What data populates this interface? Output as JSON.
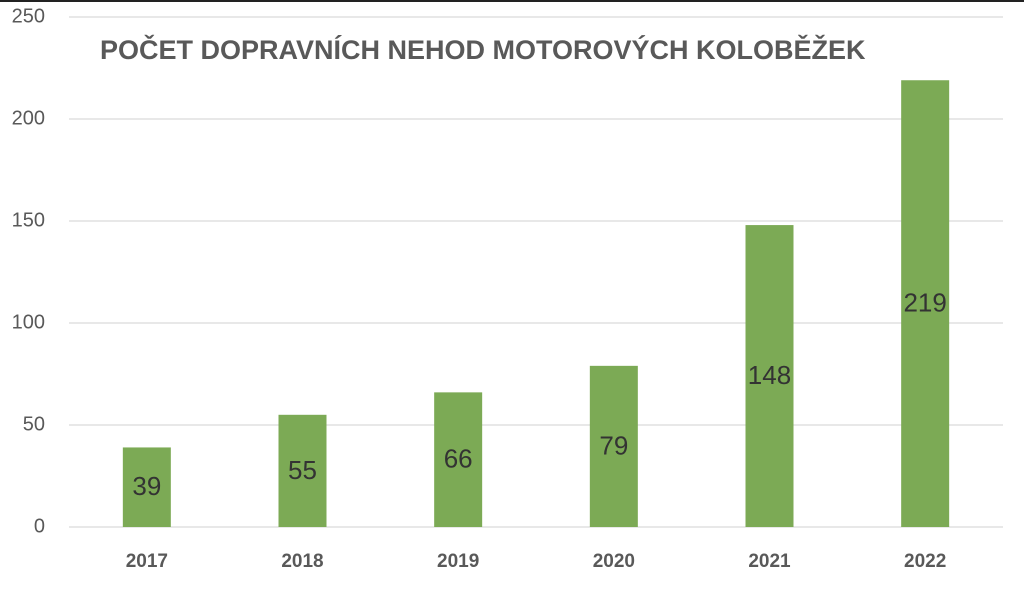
{
  "chart_data": {
    "type": "bar",
    "title": "POČET DOPRAVNÍCH NEHOD MOTOROVÝCH KOLOBĚŽEK",
    "categories": [
      "2017",
      "2018",
      "2019",
      "2020",
      "2021",
      "2022"
    ],
    "values": [
      39,
      55,
      66,
      79,
      148,
      219
    ],
    "color": "#7caa55",
    "ylim": [
      0,
      250
    ],
    "yticks": [
      0,
      50,
      100,
      150,
      200,
      250
    ],
    "grid": true
  }
}
